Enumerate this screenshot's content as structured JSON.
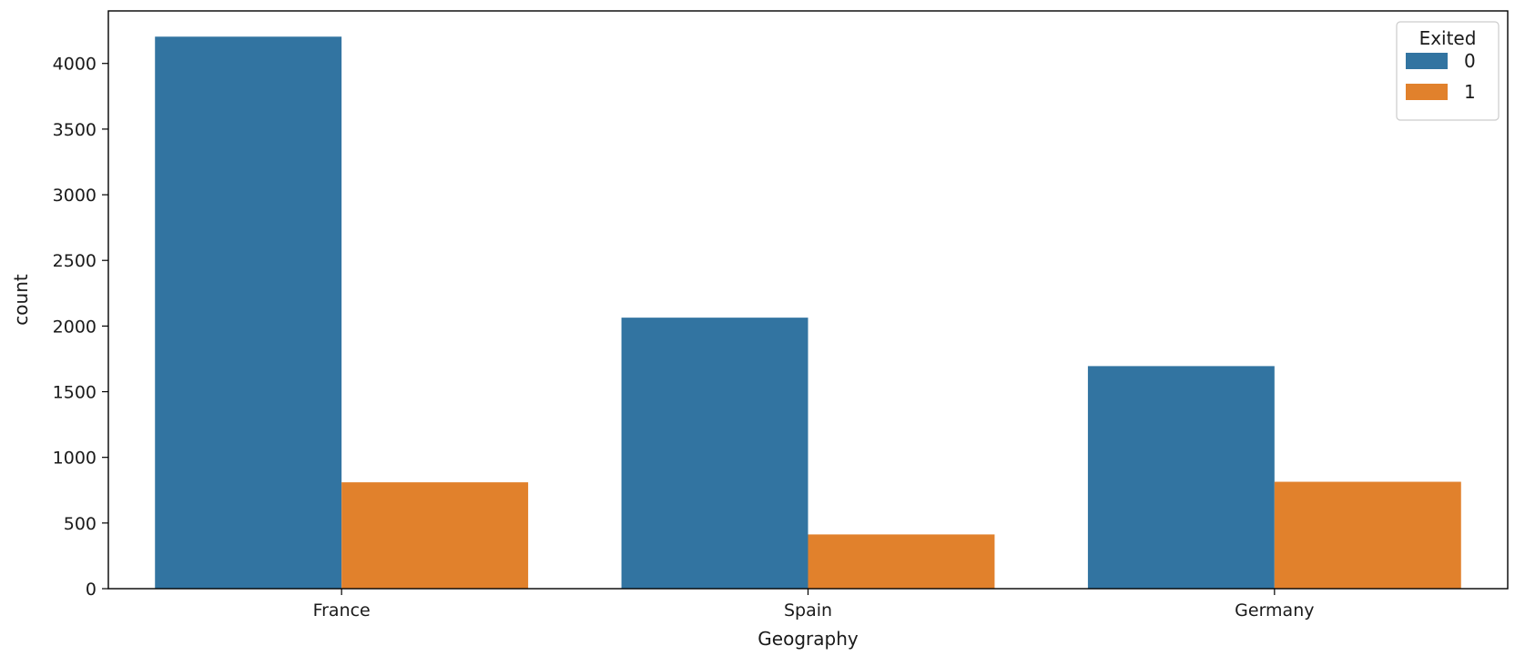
{
  "chart_data": {
    "type": "bar",
    "categories": [
      "France",
      "Spain",
      "Germany"
    ],
    "series": [
      {
        "name": "0",
        "values": [
          4204,
          2064,
          1695
        ]
      },
      {
        "name": "1",
        "values": [
          810,
          413,
          814
        ]
      }
    ],
    "xlabel": "Geography",
    "ylabel": "count",
    "ylim": [
      0,
      4400
    ],
    "yticks": [
      0,
      500,
      1000,
      1500,
      2000,
      2500,
      3000,
      3500,
      4000
    ],
    "legend": {
      "title": "Exited",
      "placement": "top-right"
    },
    "colors": [
      "#3274a1",
      "#e1812c"
    ],
    "grid": false
  }
}
